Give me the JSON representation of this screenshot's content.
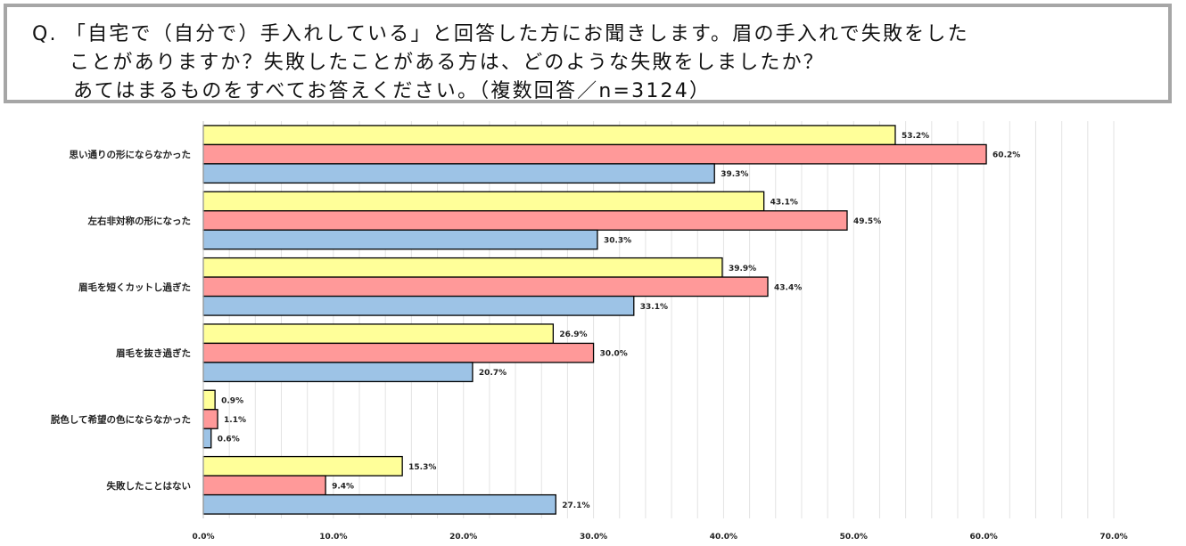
{
  "question": {
    "line1": "Q. 「自宅で（自分で）手入れしている」と回答した方にお聞きします。眉の手入れで失敗をした",
    "line2": "ことがありますか？失敗したことがある方は、どのような失敗をしましたか？",
    "line3": "あてはまるものをすべてお答えください。（複数回答／n=3124）"
  },
  "chart_data": {
    "type": "bar",
    "orientation": "horizontal",
    "title": "",
    "xlabel": "",
    "ylabel": "",
    "xlim": [
      0,
      70
    ],
    "x_ticks": [
      "0.0%",
      "10.0%",
      "20.0%",
      "30.0%",
      "40.0%",
      "50.0%",
      "60.0%",
      "70.0%"
    ],
    "x_tick_values": [
      0,
      10,
      20,
      30,
      40,
      50,
      60,
      70
    ],
    "minor_grid_step": 2,
    "grid": true,
    "legend": "none",
    "categories": [
      "思い通りの形にならなかった",
      "左右非対称の形になった",
      "眉毛を短くカットし過ぎた",
      "眉毛を抜き過ぎた",
      "脱色して希望の色にならなかった",
      "失敗したことはない"
    ],
    "series": [
      {
        "name": "series-yellow",
        "color": "#ffff99",
        "values": [
          53.2,
          43.1,
          39.9,
          26.9,
          0.9,
          15.3
        ],
        "labels": [
          "53.2%",
          "43.1%",
          "39.9%",
          "26.9%",
          "0.9%",
          "15.3%"
        ]
      },
      {
        "name": "series-red",
        "color": "#ff9999",
        "values": [
          60.2,
          49.5,
          43.4,
          30.0,
          1.1,
          9.4
        ],
        "labels": [
          "60.2%",
          "49.5%",
          "43.4%",
          "30.0%",
          "1.1%",
          "9.4%"
        ]
      },
      {
        "name": "series-blue",
        "color": "#9dc3e6",
        "values": [
          39.3,
          30.3,
          33.1,
          20.7,
          0.6,
          27.1
        ],
        "labels": [
          "39.3%",
          "30.3%",
          "33.1%",
          "20.7%",
          "0.6%",
          "27.1%"
        ]
      }
    ]
  }
}
